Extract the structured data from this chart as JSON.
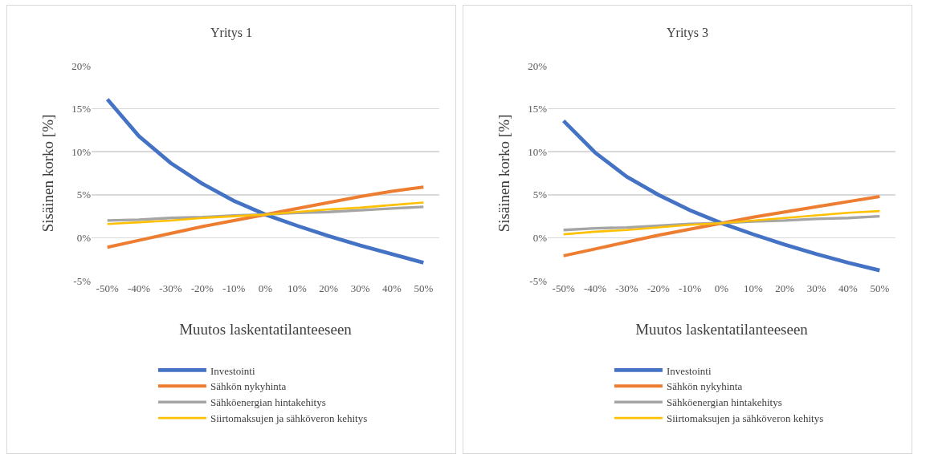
{
  "chart_data": [
    {
      "type": "line",
      "title": "Yritys 1",
      "xlabel": "Muutos laskentatilanteeseen",
      "ylabel": "Sisäinen korko [%]",
      "categories": [
        "-50%",
        "-40%",
        "-30%",
        "-20%",
        "-10%",
        "0%",
        "10%",
        "20%",
        "30%",
        "40%",
        "50%"
      ],
      "ylim": [
        -5,
        20
      ],
      "yticks": [
        {
          "value": -5,
          "label": "-5%"
        },
        {
          "value": 0,
          "label": "0%"
        },
        {
          "value": 5,
          "label": "5%"
        },
        {
          "value": 10,
          "label": "10%"
        },
        {
          "value": 15,
          "label": "15%"
        },
        {
          "value": 20,
          "label": "20%"
        }
      ],
      "grid": "y",
      "legend": "bottom",
      "line_style": "solid",
      "series": [
        {
          "name": "Investointi",
          "color": "#4472c4",
          "values": [
            16.1,
            11.8,
            8.7,
            6.3,
            4.3,
            2.7,
            1.4,
            0.2,
            -0.9,
            -1.9,
            -2.9
          ]
        },
        {
          "name": "Sähkön nykyhinta",
          "color": "#ed7d31",
          "values": [
            -1.1,
            -0.3,
            0.5,
            1.3,
            2.0,
            2.7,
            3.4,
            4.1,
            4.8,
            5.4,
            5.9
          ]
        },
        {
          "name": "Sähköenergian hintakehitys",
          "color": "#a5a5a5",
          "values": [
            2.0,
            2.1,
            2.3,
            2.4,
            2.6,
            2.7,
            2.9,
            3.0,
            3.2,
            3.4,
            3.6
          ]
        },
        {
          "name": "Siirtomaksujen ja sähköveron kehitys",
          "color": "#ffc000",
          "values": [
            1.6,
            1.8,
            2.0,
            2.3,
            2.5,
            2.7,
            3.0,
            3.3,
            3.5,
            3.8,
            4.1
          ]
        }
      ]
    },
    {
      "type": "line",
      "title": "Yritys 3",
      "xlabel": "Muutos laskentatilanteeseen",
      "ylabel": "Sisäinen korko [%]",
      "categories": [
        "-50%",
        "-40%",
        "-30%",
        "-20%",
        "-10%",
        "0%",
        "10%",
        "20%",
        "30%",
        "40%",
        "50%"
      ],
      "ylim": [
        -5,
        20
      ],
      "yticks": [
        {
          "value": -5,
          "label": "-5%"
        },
        {
          "value": 0,
          "label": "0%"
        },
        {
          "value": 5,
          "label": "5%"
        },
        {
          "value": 10,
          "label": "10%"
        },
        {
          "value": 15,
          "label": "15%"
        },
        {
          "value": 20,
          "label": "20%"
        }
      ],
      "grid": "y",
      "legend": "bottom",
      "line_style": "solid",
      "series": [
        {
          "name": "Investointi",
          "color": "#4472c4",
          "values": [
            13.6,
            9.9,
            7.1,
            5.0,
            3.2,
            1.7,
            0.4,
            -0.8,
            -1.9,
            -2.9,
            -3.8
          ]
        },
        {
          "name": "Sähkön nykyhinta",
          "color": "#ed7d31",
          "values": [
            -2.1,
            -1.3,
            -0.5,
            0.3,
            1.0,
            1.7,
            2.4,
            3.0,
            3.6,
            4.2,
            4.8
          ]
        },
        {
          "name": "Sähköenergian hintakehitys",
          "color": "#a5a5a5",
          "values": [
            0.9,
            1.1,
            1.2,
            1.4,
            1.6,
            1.7,
            1.9,
            2.0,
            2.2,
            2.3,
            2.5
          ]
        },
        {
          "name": "Siirtomaksujen ja sähköveron kehitys",
          "color": "#ffc000",
          "values": [
            0.4,
            0.7,
            0.9,
            1.2,
            1.5,
            1.7,
            2.0,
            2.3,
            2.6,
            2.9,
            3.1
          ]
        }
      ]
    }
  ]
}
